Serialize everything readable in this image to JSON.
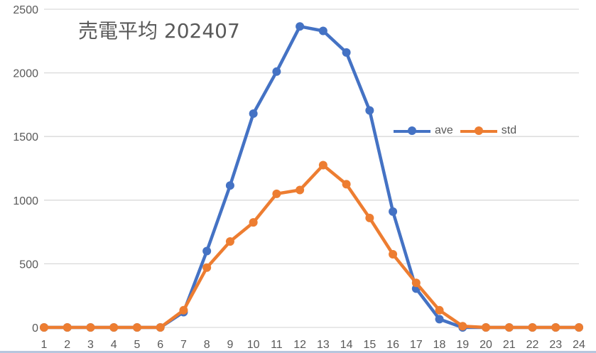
{
  "chart_data": {
    "type": "line",
    "title": "売電平均 202407",
    "xlabel": "",
    "ylabel": "",
    "categories": [
      "1",
      "2",
      "3",
      "4",
      "5",
      "6",
      "7",
      "8",
      "9",
      "10",
      "11",
      "12",
      "13",
      "14",
      "15",
      "16",
      "17",
      "18",
      "19",
      "20",
      "21",
      "22",
      "23",
      "24"
    ],
    "series": [
      {
        "name": "ave",
        "color": "#4472c4",
        "values": [
          0,
          0,
          0,
          0,
          0,
          0,
          120,
          600,
          1115,
          1680,
          2010,
          2365,
          2330,
          2160,
          1705,
          910,
          305,
          65,
          0,
          0,
          0,
          0,
          0,
          0
        ]
      },
      {
        "name": "std",
        "color": "#ed7d31",
        "values": [
          0,
          0,
          0,
          0,
          0,
          0,
          135,
          470,
          675,
          825,
          1050,
          1080,
          1275,
          1125,
          860,
          575,
          350,
          135,
          10,
          0,
          0,
          0,
          0,
          0
        ]
      }
    ],
    "ylim": [
      0,
      2500
    ],
    "yticks": [
      0,
      500,
      1000,
      1500,
      2000,
      2500
    ],
    "grid": true,
    "legend_position": "inside-right"
  },
  "title": "売電平均 202407",
  "legend": {
    "items": [
      {
        "label": "ave",
        "color": "#4472c4"
      },
      {
        "label": "std",
        "color": "#ed7d31"
      }
    ]
  }
}
